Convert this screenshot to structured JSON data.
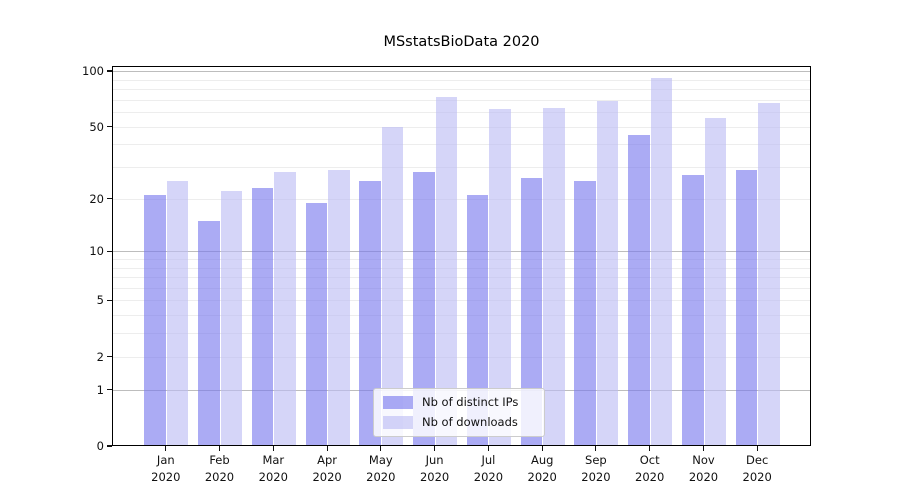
{
  "chart_data": {
    "type": "bar",
    "title": "MSstatsBioData 2020",
    "categories": [
      "Jan",
      "Feb",
      "Mar",
      "Apr",
      "May",
      "Jun",
      "Jul",
      "Aug",
      "Sep",
      "Oct",
      "Nov",
      "Dec"
    ],
    "category_year": "2020",
    "series": [
      {
        "name": "Nb of distinct IPs",
        "color": "#7777ee",
        "opacity": 0.62,
        "values": [
          21,
          15,
          23,
          19,
          25,
          28,
          21,
          26,
          25,
          45,
          27,
          29
        ]
      },
      {
        "name": "Nb of downloads",
        "color": "#bbbbf3",
        "opacity": 0.62,
        "values": [
          25,
          22,
          28,
          29,
          50,
          72,
          62,
          63,
          69,
          92,
          56,
          67
        ]
      }
    ],
    "xlabel": "",
    "ylabel": "",
    "yscale": "log1p",
    "ylim": [
      0,
      106
    ],
    "yticks": [
      0,
      1,
      2,
      5,
      10,
      20,
      50,
      100
    ],
    "major_gridlines": [
      1,
      10,
      100
    ],
    "minor_gridlines": [
      2,
      3,
      4,
      5,
      6,
      7,
      8,
      9,
      20,
      30,
      40,
      50,
      60,
      70,
      80,
      90
    ],
    "grid": true,
    "legend_position": "lower center",
    "background_color": "#ffffff",
    "text_color": "#111111"
  }
}
